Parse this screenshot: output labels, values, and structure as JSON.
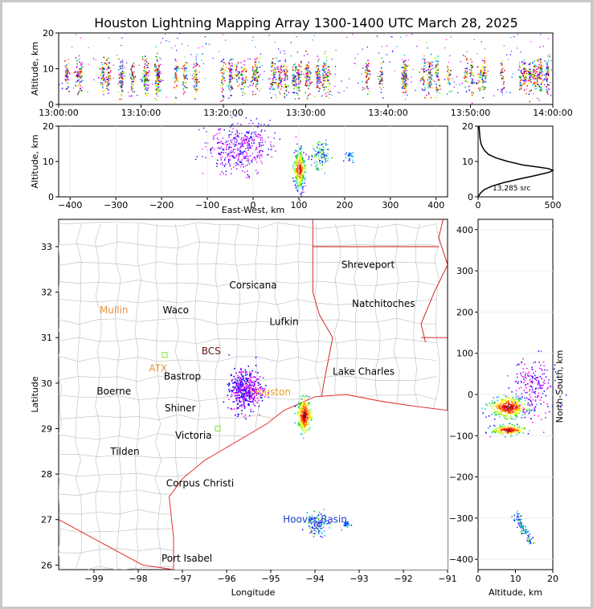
{
  "title": "Houston Lightning Mapping Array 1300-1400 UTC March 28, 2025",
  "colors": {
    "frame": "#c8c8c8",
    "coast": "#e02020",
    "counties": "#b4b4b4",
    "state": "#d01010"
  },
  "chart_data": [
    {
      "type": "scatter",
      "name": "time-height",
      "ylabel": "Altitude, km",
      "xlim": [
        "13:00:00",
        "14:00:00"
      ],
      "ylim": [
        0,
        20
      ],
      "x_ticks": [
        "13:00:00",
        "13:10:00",
        "13:20:00",
        "13:30:00",
        "13:40:00",
        "13:50:00",
        "14:00:00"
      ],
      "y_ticks": [
        "0",
        "10",
        "20"
      ]
    },
    {
      "type": "scatter",
      "name": "east-west-altitude",
      "xlabel": "East-West, km",
      "ylabel": "Altitude, km",
      "xlim": [
        -425,
        425
      ],
      "ylim": [
        0,
        20
      ],
      "x_ticks": [
        "−400",
        "−300",
        "−200",
        "−100",
        "0",
        "100",
        "200",
        "300",
        "400"
      ],
      "y_ticks": [
        "0",
        "10",
        "20"
      ]
    },
    {
      "type": "line",
      "name": "altitude-histogram",
      "xlim": [
        0,
        500
      ],
      "ylim": [
        0,
        20
      ],
      "x_ticks": [
        "0",
        "500"
      ],
      "y_ticks": [
        "0",
        "10",
        "20"
      ],
      "annotation": "13,285 src",
      "points": [
        [
          0,
          0
        ],
        [
          15,
          1
        ],
        [
          40,
          2
        ],
        [
          90,
          3
        ],
        [
          170,
          4
        ],
        [
          270,
          5
        ],
        [
          380,
          6
        ],
        [
          480,
          7
        ],
        [
          500,
          7.5
        ],
        [
          470,
          8
        ],
        [
          390,
          8.5
        ],
        [
          300,
          9
        ],
        [
          200,
          10
        ],
        [
          120,
          11
        ],
        [
          70,
          12
        ],
        [
          45,
          13
        ],
        [
          30,
          14
        ],
        [
          20,
          15
        ],
        [
          15,
          16
        ],
        [
          12,
          17
        ],
        [
          10,
          18
        ],
        [
          8,
          19
        ],
        [
          6,
          20
        ]
      ]
    },
    {
      "type": "map",
      "name": "plan-view",
      "xlabel": "Longitude",
      "ylabel": "Latitude",
      "xlim": [
        -99.8,
        -91
      ],
      "ylim": [
        25.9,
        33.6
      ],
      "x_ticks": [
        "−99",
        "−98",
        "−97",
        "−96",
        "−95",
        "−94",
        "−93",
        "−92",
        "−91"
      ],
      "y_ticks": [
        "26",
        "27",
        "28",
        "29",
        "30",
        "31",
        "32",
        "33"
      ],
      "cities": [
        {
          "name": "Shreveport",
          "lon": -92.8,
          "lat": 32.6,
          "color": "#000000"
        },
        {
          "name": "Corsicana",
          "lon": -95.4,
          "lat": 32.15,
          "color": "#000000"
        },
        {
          "name": "Natchitoches",
          "lon": -92.45,
          "lat": 31.75,
          "color": "#000000"
        },
        {
          "name": "Mullin",
          "lon": -98.55,
          "lat": 31.6,
          "color": "#e8903a"
        },
        {
          "name": "Waco",
          "lon": -97.15,
          "lat": 31.6,
          "color": "#000000"
        },
        {
          "name": "Lufkin",
          "lon": -94.7,
          "lat": 31.35,
          "color": "#000000"
        },
        {
          "name": "BCS",
          "lon": -96.35,
          "lat": 30.7,
          "color": "#6a1010"
        },
        {
          "name": "ATX",
          "lon": -97.55,
          "lat": 30.32,
          "color": "#e8903a"
        },
        {
          "name": "Bastrop",
          "lon": -97.0,
          "lat": 30.15,
          "color": "#000000"
        },
        {
          "name": "Lake Charles",
          "lon": -92.9,
          "lat": 30.25,
          "color": "#000000"
        },
        {
          "name": "Boerne",
          "lon": -98.55,
          "lat": 29.82,
          "color": "#000000"
        },
        {
          "name": "Houston",
          "lon": -95.0,
          "lat": 29.8,
          "color": "#e8a020"
        },
        {
          "name": "Shiner",
          "lon": -97.05,
          "lat": 29.45,
          "color": "#000000"
        },
        {
          "name": "Victoria",
          "lon": -96.75,
          "lat": 28.85,
          "color": "#000000"
        },
        {
          "name": "Tilden",
          "lon": -98.3,
          "lat": 28.5,
          "color": "#000000"
        },
        {
          "name": "Corpus Christi",
          "lon": -96.6,
          "lat": 27.8,
          "color": "#000000"
        },
        {
          "name": "Hoover Basin",
          "lon": -94.0,
          "lat": 27.0,
          "color": "#1a40d0"
        },
        {
          "name": "Port Isabel",
          "lon": -96.9,
          "lat": 26.15,
          "color": "#000000"
        }
      ]
    },
    {
      "type": "scatter",
      "name": "altitude-north-south",
      "xlabel": "Altitude, km",
      "ylabel": "North-South, km",
      "xlim": [
        0,
        20
      ],
      "ylim": [
        -425,
        425
      ],
      "x_ticks": [
        "0",
        "10",
        "20"
      ],
      "y_ticks": [
        "−400",
        "−300",
        "−200",
        "−100",
        "0",
        "100",
        "200",
        "300",
        "400"
      ]
    }
  ]
}
